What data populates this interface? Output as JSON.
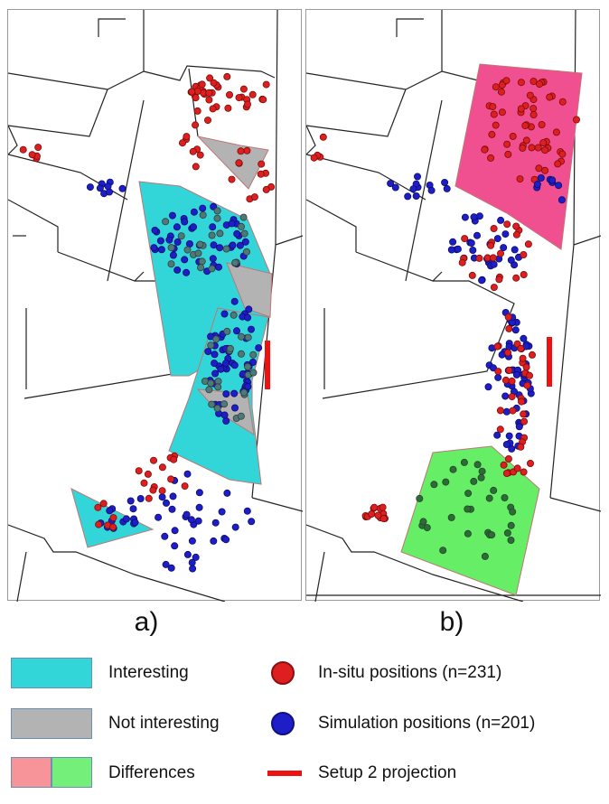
{
  "panels": [
    {
      "label": "a)"
    },
    {
      "label": "b)"
    }
  ],
  "legend": {
    "interesting": {
      "label": "Interesting",
      "color": "#33d6d8"
    },
    "not_interesting": {
      "label": "Not interesting",
      "color": "#b3b3b3"
    },
    "differences": {
      "label": "Differences",
      "colors": [
        "#f7949a",
        "#74f07a"
      ]
    },
    "in_situ": {
      "label": "In-situ positions (n=231)",
      "color": "#dd1f1f"
    },
    "simulation": {
      "label": "Simulation positions (n=201)",
      "color": "#1e1ec8"
    },
    "projection": {
      "label": "Setup 2 projection",
      "color": "#ee1111"
    }
  },
  "colors": {
    "building_outline": "#222222",
    "zone_border": "#e08080",
    "pink_zone": "#f0508f",
    "green_zone": "#66ee66"
  }
}
